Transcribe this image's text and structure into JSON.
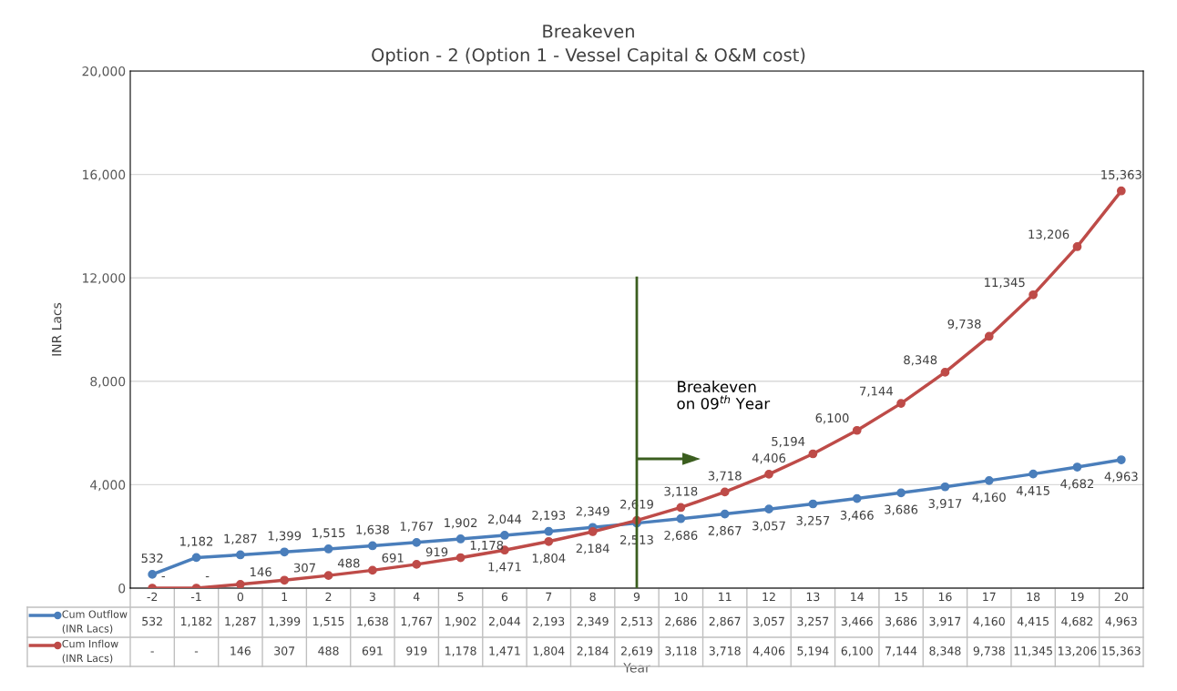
{
  "chart_data": {
    "type": "line",
    "title": "Breakeven",
    "subtitle": "Option - 2 (Option 1 - Vessel Capital & O&M cost)",
    "xlabel": "Year",
    "ylabel": "INR Lacs",
    "categories": [
      "-2",
      "-1",
      "0",
      "1",
      "2",
      "3",
      "4",
      "5",
      "6",
      "7",
      "8",
      "9",
      "10",
      "11",
      "12",
      "13",
      "14",
      "15",
      "16",
      "17",
      "18",
      "19",
      "20"
    ],
    "series": [
      {
        "name": "Cum Outflow (INR Lacs)",
        "color": "#4a7ebb",
        "values": [
          532,
          1182,
          1287,
          1399,
          1515,
          1638,
          1767,
          1902,
          2044,
          2193,
          2349,
          2513,
          2686,
          2867,
          3057,
          3257,
          3466,
          3686,
          3917,
          4160,
          4415,
          4682,
          4963
        ],
        "value_labels": [
          "532",
          "1,182",
          "1,287",
          "1,399",
          "1,515",
          "1,638",
          "1,767",
          "1,902",
          "2,044",
          "2,193",
          "2,349",
          "2,513",
          "2,686",
          "2,867",
          "3,057",
          "3,257",
          "3,466",
          "3,686",
          "3,917",
          "4,160",
          "4,415",
          "4,682",
          "4,963"
        ]
      },
      {
        "name": "Cum Inflow (INR Lacs)",
        "color": "#be4b48",
        "values": [
          0,
          0,
          146,
          307,
          488,
          691,
          919,
          1178,
          1471,
          1804,
          2184,
          2619,
          3118,
          3718,
          4406,
          5194,
          6100,
          7144,
          8348,
          9738,
          11345,
          13206,
          15363
        ],
        "value_labels": [
          "-",
          "-",
          "146",
          "307",
          "488",
          "691",
          "919",
          "1,178",
          "1,471",
          "1,804",
          "2,184",
          "2,619",
          "3,118",
          "3,718",
          "4,406",
          "5,194",
          "6,100",
          "7,144",
          "8,348",
          "9,738",
          "11,345",
          "13,206",
          "15,363"
        ]
      }
    ],
    "ylim": [
      0,
      20000
    ],
    "yticks": [
      0,
      {
        "value": 4000,
        "label": "4,000"
      },
      {
        "value": 8000,
        "label": "8,000"
      },
      {
        "value": 12000,
        "label": "12,000"
      },
      {
        "value": 16000,
        "label": "16,000"
      },
      {
        "value": 20000,
        "label": "20,000"
      }
    ],
    "grid": "y",
    "marker": "circle",
    "line_style": "solid",
    "tick_labels": "y",
    "legend": "bottom left",
    "ref_lines": [
      {
        "axis": "x",
        "value": "9",
        "color": "#3b5e1f"
      }
    ],
    "annotations": [
      "Breakeven\non 09$^{th}$ Year"
    ]
  }
}
